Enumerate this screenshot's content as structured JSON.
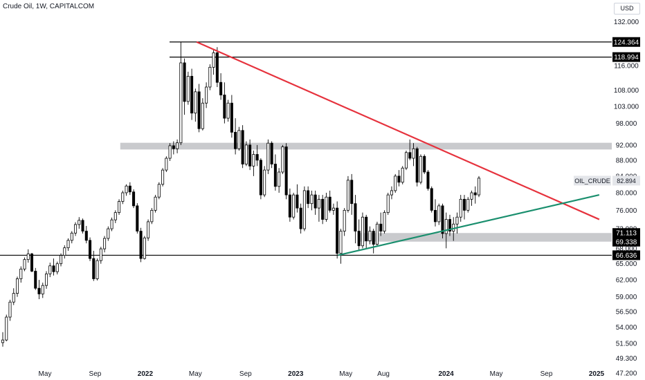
{
  "header": {
    "title": "Crude Oil, 1W, CAPITALCOM",
    "currency": "USD"
  },
  "colors": {
    "up": "#ffffff",
    "down": "#000000",
    "wick": "#000000",
    "resistance_line": "#e6323d",
    "support_line": "#1a8f6e",
    "zone": "#c9cacd",
    "level_line": "#000000"
  },
  "chart_data": {
    "type": "candlestick",
    "title": "Crude Oil, 1W, CAPITALCOM",
    "ylim": [
      47.2,
      134.5
    ],
    "y_scale": "log",
    "y_ticks": [
      "132.000",
      "124.364",
      "118.994",
      "116.000",
      "108.000",
      "103.000",
      "98.000",
      "92.000",
      "88.000",
      "84.000",
      "80.000",
      "76.000",
      "72.000",
      "71.113",
      "69.338",
      "68.000",
      "66.636",
      "65.000",
      "62.000",
      "59.000",
      "56.500",
      "54.000",
      "51.500",
      "49.300",
      "47.200"
    ],
    "x_ticks": [
      {
        "label": "May",
        "year": false
      },
      {
        "label": "Sep",
        "year": false
      },
      {
        "label": "2022",
        "year": true
      },
      {
        "label": "May",
        "year": false
      },
      {
        "label": "Sep",
        "year": false
      },
      {
        "label": "2023",
        "year": true
      },
      {
        "label": "May",
        "year": false
      },
      {
        "label": "Aug",
        "year": false
      },
      {
        "label": "2024",
        "year": true
      },
      {
        "label": "May",
        "year": false
      },
      {
        "label": "Sep",
        "year": false
      },
      {
        "label": "2025",
        "year": true
      }
    ],
    "x_tick_dates": [
      "2021-05",
      "2021-09",
      "2022-01",
      "2022-05",
      "2022-09",
      "2023-01",
      "2023-05",
      "2023-08",
      "2024-01",
      "2024-05",
      "2024-09",
      "2025-01"
    ],
    "price_levels": [
      {
        "label": "124.364",
        "value": 124.364
      },
      {
        "label": "118.994",
        "value": 118.994
      },
      {
        "label": "66.636",
        "value": 66.636
      }
    ],
    "zone_labels": [
      {
        "label": "71.113",
        "value": 71.113
      },
      {
        "label": "69.338",
        "value": 69.338
      }
    ],
    "zones": [
      {
        "from": 90.8,
        "to": 92.6,
        "start": "2021-12"
      },
      {
        "from": 69.338,
        "to": 71.113,
        "start": "2023-07"
      }
    ],
    "resistance_line": {
      "from": [
        "2022-03",
        124.364
      ],
      "to": [
        "2024-12",
        74.0
      ]
    },
    "support_line": {
      "from": [
        "2023-03",
        66.636
      ],
      "to": [
        "2024-12",
        79.5
      ]
    },
    "last_price": {
      "symbol": "OIL_CRUDE",
      "value": 82.894
    },
    "candles_ohlc": [
      [
        51.6,
        53.2,
        51.0,
        52.0
      ],
      [
        52.0,
        56.0,
        51.8,
        55.6
      ],
      [
        55.6,
        58.5,
        55.0,
        58.1
      ],
      [
        58.1,
        60.5,
        57.6,
        59.6
      ],
      [
        59.6,
        62.6,
        59.0,
        62.2
      ],
      [
        62.2,
        64.5,
        61.5,
        64.0
      ],
      [
        64.0,
        66.2,
        63.6,
        65.8
      ],
      [
        65.8,
        67.8,
        65.2,
        66.9
      ],
      [
        66.9,
        67.1,
        63.4,
        63.6
      ],
      [
        63.6,
        64.2,
        60.2,
        60.5
      ],
      [
        60.5,
        62.0,
        58.6,
        59.5
      ],
      [
        59.5,
        61.5,
        58.8,
        61.0
      ],
      [
        61.0,
        63.6,
        60.4,
        63.1
      ],
      [
        63.1,
        65.2,
        62.5,
        64.6
      ],
      [
        64.6,
        66.0,
        62.8,
        63.5
      ],
      [
        63.5,
        65.4,
        63.0,
        65.0
      ],
      [
        65.0,
        67.0,
        64.5,
        66.6
      ],
      [
        66.6,
        68.6,
        66.0,
        68.1
      ],
      [
        68.1,
        70.0,
        67.5,
        69.6
      ],
      [
        69.6,
        71.5,
        69.0,
        71.1
      ],
      [
        71.1,
        73.4,
        70.5,
        72.9
      ],
      [
        72.9,
        74.5,
        72.0,
        73.8
      ],
      [
        73.8,
        74.2,
        71.0,
        71.5
      ],
      [
        71.5,
        72.6,
        69.0,
        69.6
      ],
      [
        69.6,
        70.2,
        65.5,
        66.0
      ],
      [
        66.0,
        67.5,
        61.8,
        62.2
      ],
      [
        62.2,
        66.0,
        61.9,
        65.6
      ],
      [
        65.6,
        68.3,
        65.0,
        67.9
      ],
      [
        67.9,
        70.5,
        67.2,
        70.0
      ],
      [
        70.0,
        72.5,
        69.5,
        72.0
      ],
      [
        72.0,
        74.4,
        71.5,
        73.9
      ],
      [
        73.9,
        76.0,
        73.2,
        75.5
      ],
      [
        75.5,
        78.5,
        75.0,
        78.0
      ],
      [
        78.0,
        80.5,
        77.4,
        80.0
      ],
      [
        80.0,
        82.0,
        79.3,
        81.6
      ],
      [
        81.6,
        82.5,
        79.5,
        80.2
      ],
      [
        80.2,
        80.8,
        76.5,
        77.0
      ],
      [
        77.0,
        77.6,
        71.0,
        71.5
      ],
      [
        71.5,
        72.2,
        65.3,
        66.0
      ],
      [
        66.0,
        70.5,
        65.8,
        70.1
      ],
      [
        70.1,
        74.0,
        69.5,
        73.5
      ],
      [
        73.5,
        76.5,
        73.0,
        76.0
      ],
      [
        76.0,
        79.5,
        75.5,
        79.0
      ],
      [
        79.0,
        82.5,
        78.5,
        82.0
      ],
      [
        82.0,
        86.0,
        81.5,
        85.5
      ],
      [
        85.5,
        89.0,
        85.0,
        88.5
      ],
      [
        88.5,
        92.5,
        87.8,
        91.8
      ],
      [
        91.8,
        93.0,
        89.5,
        91.0
      ],
      [
        91.0,
        93.5,
        89.8,
        92.6
      ],
      [
        92.6,
        124.364,
        92.0,
        117.0
      ],
      [
        117.0,
        118.5,
        100.5,
        104.5
      ],
      [
        104.5,
        114.0,
        103.5,
        112.5
      ],
      [
        112.5,
        115.0,
        99.0,
        101.0
      ],
      [
        101.0,
        108.5,
        98.5,
        107.5
      ],
      [
        107.5,
        110.0,
        95.5,
        96.5
      ],
      [
        96.5,
        105.5,
        96.0,
        104.0
      ],
      [
        104.0,
        110.5,
        102.5,
        109.0
      ],
      [
        109.0,
        116.5,
        108.0,
        115.5
      ],
      [
        115.5,
        121.5,
        113.0,
        120.5
      ],
      [
        120.5,
        122.5,
        109.0,
        110.5
      ],
      [
        110.5,
        113.5,
        105.0,
        106.5
      ],
      [
        106.5,
        110.5,
        98.0,
        99.5
      ],
      [
        99.5,
        105.0,
        98.5,
        104.0
      ],
      [
        104.0,
        106.5,
        94.0,
        95.5
      ],
      [
        95.5,
        99.5,
        89.5,
        91.0
      ],
      [
        91.0,
        97.0,
        90.5,
        96.0
      ],
      [
        96.0,
        97.5,
        86.0,
        87.0
      ],
      [
        87.0,
        93.0,
        86.5,
        92.0
      ],
      [
        92.0,
        93.5,
        85.5,
        86.5
      ],
      [
        86.5,
        90.5,
        84.0,
        89.5
      ],
      [
        89.5,
        92.0,
        86.5,
        88.0
      ],
      [
        88.0,
        88.5,
        78.5,
        79.5
      ],
      [
        79.5,
        86.5,
        79.0,
        85.5
      ],
      [
        85.5,
        93.5,
        84.5,
        92.5
      ],
      [
        92.5,
        93.0,
        86.0,
        87.0
      ],
      [
        87.0,
        89.5,
        80.5,
        81.5
      ],
      [
        81.5,
        86.0,
        80.0,
        85.0
      ],
      [
        85.0,
        92.0,
        84.5,
        91.5
      ],
      [
        91.5,
        92.5,
        78.5,
        79.5
      ],
      [
        79.5,
        81.0,
        73.5,
        74.5
      ],
      [
        74.5,
        80.0,
        74.0,
        79.5
      ],
      [
        79.5,
        82.0,
        75.5,
        76.5
      ],
      [
        76.5,
        77.5,
        71.0,
        72.0
      ],
      [
        72.0,
        81.5,
        71.5,
        80.5
      ],
      [
        80.5,
        81.5,
        76.5,
        77.5
      ],
      [
        77.5,
        80.5,
        76.0,
        79.5
      ],
      [
        79.5,
        80.5,
        75.0,
        76.5
      ],
      [
        76.5,
        79.5,
        73.5,
        78.5
      ],
      [
        78.5,
        79.5,
        73.0,
        74.0
      ],
      [
        74.0,
        80.0,
        73.5,
        79.0
      ],
      [
        79.0,
        80.5,
        75.5,
        76.0
      ],
      [
        76.0,
        77.5,
        75.0,
        76.5
      ],
      [
        76.5,
        78.0,
        66.0,
        67.0
      ],
      [
        67.0,
        72.0,
        65.0,
        71.5
      ],
      [
        71.5,
        76.5,
        70.5,
        76.0
      ],
      [
        76.0,
        84.0,
        75.5,
        83.0
      ],
      [
        83.0,
        84.5,
        75.0,
        77.5
      ],
      [
        77.5,
        79.5,
        69.0,
        71.5
      ],
      [
        71.5,
        74.0,
        67.5,
        68.5
      ],
      [
        68.5,
        75.5,
        68.0,
        74.5
      ],
      [
        74.5,
        75.0,
        67.8,
        69.5
      ],
      [
        69.5,
        72.5,
        68.8,
        71.5
      ],
      [
        71.5,
        72.0,
        67.0,
        68.8
      ],
      [
        68.8,
        73.5,
        68.3,
        73.0
      ],
      [
        73.0,
        75.5,
        70.5,
        71.5
      ],
      [
        71.5,
        76.0,
        71.0,
        75.5
      ],
      [
        75.5,
        80.0,
        75.0,
        79.5
      ],
      [
        79.5,
        81.5,
        78.5,
        80.5
      ],
      [
        80.5,
        84.5,
        80.0,
        84.0
      ],
      [
        84.0,
        85.5,
        81.5,
        82.5
      ],
      [
        82.5,
        86.5,
        82.0,
        86.0
      ],
      [
        86.0,
        90.5,
        85.5,
        90.0
      ],
      [
        90.0,
        93.5,
        88.0,
        88.5
      ],
      [
        88.5,
        92.5,
        86.5,
        91.0
      ],
      [
        91.0,
        91.5,
        81.5,
        82.5
      ],
      [
        82.5,
        89.5,
        82.0,
        89.0
      ],
      [
        89.0,
        89.5,
        84.5,
        85.0
      ],
      [
        85.0,
        85.5,
        80.5,
        81.0
      ],
      [
        81.0,
        81.5,
        75.5,
        76.0
      ],
      [
        76.0,
        78.5,
        72.5,
        73.5
      ],
      [
        73.5,
        77.5,
        72.8,
        77.0
      ],
      [
        77.0,
        77.5,
        70.0,
        71.0
      ],
      [
        71.0,
        75.5,
        68.0,
        74.0
      ],
      [
        74.0,
        75.0,
        70.5,
        71.5
      ],
      [
        71.5,
        74.5,
        69.5,
        73.0
      ],
      [
        73.0,
        75.5,
        71.0,
        74.5
      ],
      [
        74.5,
        79.5,
        73.5,
        78.5
      ],
      [
        78.5,
        79.5,
        74.0,
        76.0
      ],
      [
        76.0,
        79.0,
        75.5,
        78.5
      ],
      [
        78.5,
        80.5,
        77.0,
        80.0
      ],
      [
        80.0,
        81.5,
        77.5,
        79.5
      ],
      [
        79.5,
        84.0,
        79.0,
        83.5
      ]
    ]
  }
}
